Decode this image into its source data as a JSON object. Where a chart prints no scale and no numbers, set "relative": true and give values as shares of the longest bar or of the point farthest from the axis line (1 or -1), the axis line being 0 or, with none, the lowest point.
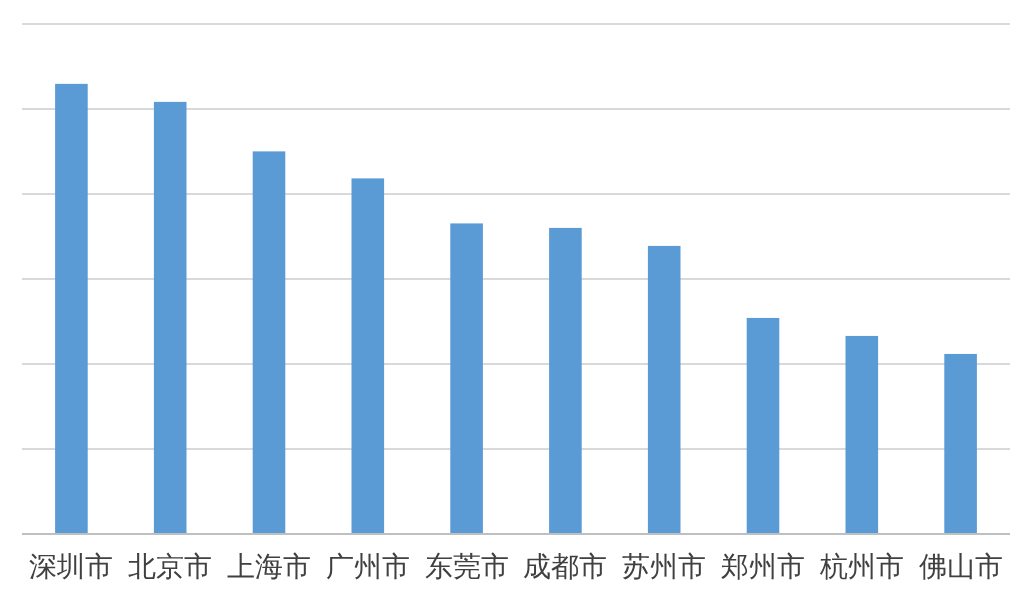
{
  "chart_data": {
    "type": "bar",
    "relative": true,
    "grid": true,
    "categories": [
      "深圳市",
      "北京市",
      "上海市",
      "广州市",
      "东莞市",
      "成都市",
      "苏州市",
      "郑州市",
      "杭州市",
      "佛山市"
    ],
    "values": [
      1,
      0.96,
      0.85,
      0.79,
      0.69,
      0.68,
      0.64,
      0.48,
      0.44,
      0.4
    ],
    "color": "#5b9bd5"
  }
}
